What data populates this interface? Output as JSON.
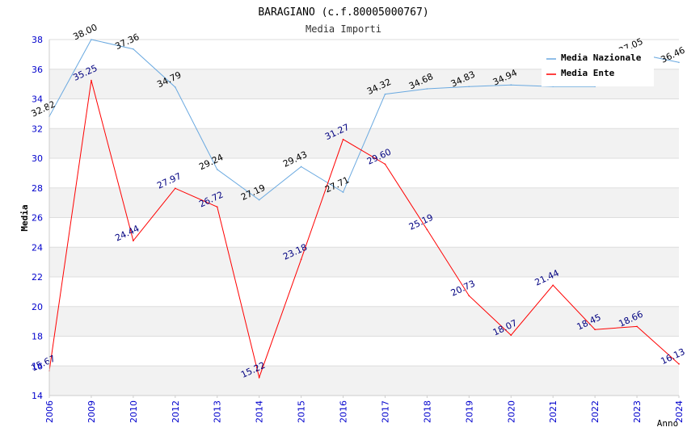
{
  "chart_data": {
    "type": "line",
    "title": "BARAGIANO (c.f.80005000767)",
    "subtitle": "Media Importi",
    "xlabel": "Anno",
    "ylabel": "Media",
    "ylim": [
      14,
      38
    ],
    "yticks": [
      "14",
      "16",
      "18",
      "20",
      "22",
      "24",
      "26",
      "28",
      "30",
      "32",
      "34",
      "36",
      "38"
    ],
    "categories": [
      "2006",
      "2009",
      "2010",
      "2012",
      "2013",
      "2014",
      "2015",
      "2016",
      "2017",
      "2018",
      "2019",
      "2020",
      "2021",
      "2022",
      "2023",
      "2024"
    ],
    "grid": true,
    "legend_position": "top-right",
    "series": [
      {
        "name": "Media Nazionale",
        "color": "#6aa9e0",
        "label_color": "#000000",
        "values": [
          32.82,
          38.0,
          37.36,
          34.79,
          29.24,
          27.19,
          29.43,
          27.71,
          34.32,
          34.68,
          34.83,
          34.94,
          34.83,
          34.83,
          37.05,
          36.46
        ],
        "labels": [
          "32.82",
          "38.00",
          "37.36",
          "34.79",
          "29.24",
          "27.19",
          "29.43",
          "27.71",
          "34.32",
          "34.68",
          "34.83",
          "34.94",
          "",
          "",
          "37.05",
          "36.46"
        ]
      },
      {
        "name": "Media Ente",
        "color": "#ff0000",
        "label_color": "#000080",
        "values": [
          15.67,
          35.25,
          24.44,
          27.97,
          26.72,
          15.22,
          23.18,
          31.27,
          29.6,
          25.19,
          20.73,
          18.07,
          21.44,
          18.45,
          18.66,
          16.13
        ],
        "labels": [
          "15.67",
          "35.25",
          "24.44",
          "27.97",
          "26.72",
          "15.22",
          "23.18",
          "31.27",
          "29.60",
          "25.19",
          "20.73",
          "18.07",
          "21.44",
          "18.45",
          "18.66",
          "16.13"
        ]
      }
    ]
  }
}
